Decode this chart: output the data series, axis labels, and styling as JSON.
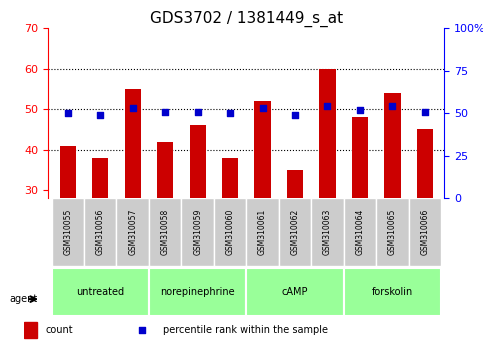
{
  "title": "GDS3702 / 1381449_s_at",
  "samples": [
    "GSM310055",
    "GSM310056",
    "GSM310057",
    "GSM310058",
    "GSM310059",
    "GSM310060",
    "GSM310061",
    "GSM310062",
    "GSM310063",
    "GSM310064",
    "GSM310065",
    "GSM310066"
  ],
  "counts": [
    41,
    38,
    55,
    42,
    46,
    38,
    52,
    35,
    60,
    48,
    54,
    45
  ],
  "percentiles": [
    50,
    49,
    53,
    51,
    51,
    50,
    53,
    49,
    54,
    52,
    54,
    51
  ],
  "bar_color": "#cc0000",
  "dot_color": "#0000cc",
  "ylim_left": [
    28,
    70
  ],
  "ylim_right": [
    0,
    100
  ],
  "yticks_left": [
    30,
    40,
    50,
    60,
    70
  ],
  "yticks_right": [
    0,
    25,
    50,
    75,
    100
  ],
  "ytick_labels_right": [
    "0",
    "25",
    "50",
    "75",
    "100%"
  ],
  "groups": [
    {
      "label": "untreated",
      "start": 0,
      "end": 3
    },
    {
      "label": "norepinephrine",
      "start": 3,
      "end": 6
    },
    {
      "label": "cAMP",
      "start": 6,
      "end": 9
    },
    {
      "label": "forskolin",
      "start": 9,
      "end": 12
    }
  ],
  "group_color": "#99ff99",
  "sample_bg_color": "#cccccc",
  "legend_count_label": "count",
  "legend_pct_label": "percentile rank within the sample",
  "agent_label": "agent",
  "title_fontsize": 11,
  "axis_fontsize": 8,
  "tick_fontsize": 8
}
